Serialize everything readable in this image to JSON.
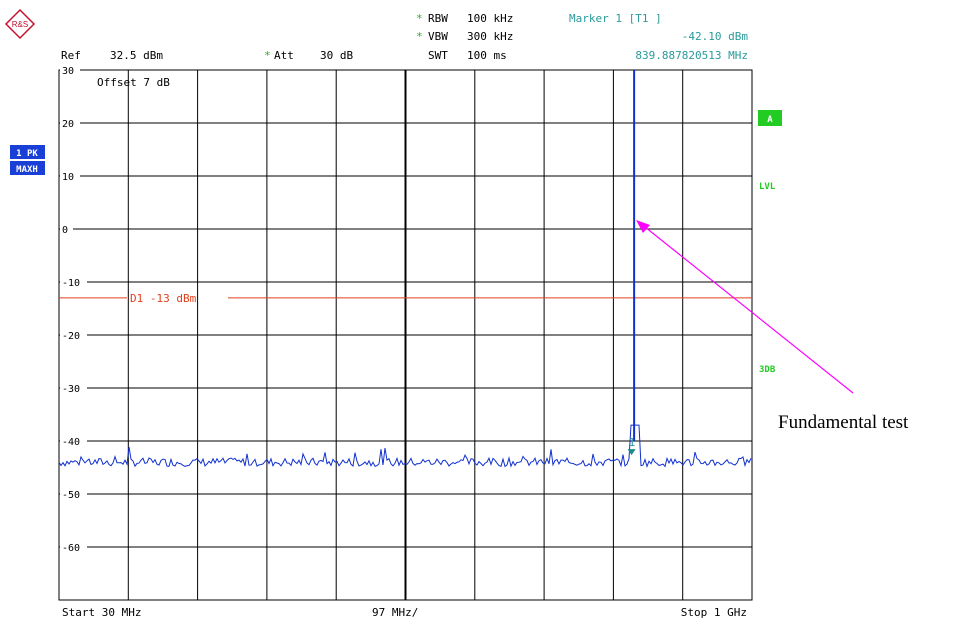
{
  "logo": {
    "text": "R&S",
    "color": "#c8102e"
  },
  "header": {
    "rbw": {
      "mark": "*",
      "label": "RBW",
      "value": "100 kHz"
    },
    "vbw": {
      "mark": "*",
      "label": "VBW",
      "value": "300 kHz"
    },
    "swt": {
      "label": "SWT",
      "value": "100 ms"
    },
    "ref": {
      "label": "Ref",
      "value": "32.5 dBm"
    },
    "att": {
      "mark": "*",
      "label": "Att",
      "value": "30 dB"
    },
    "marker": {
      "title": "Marker 1 [T1 ]",
      "level": "-42.10 dBm",
      "freq": "839.887820513 MHz"
    }
  },
  "side_labels": {
    "trace": [
      "1 PK",
      "MAXH"
    ],
    "right": {
      "a": "A",
      "lvl": "LVL",
      "db3": "3DB"
    }
  },
  "offset_text": "Offset   7 dB",
  "display_line": {
    "label": "D1  -13 dBm",
    "value": -13,
    "color": "#e0401c"
  },
  "footer": {
    "start": "Start  30 MHz",
    "span": "97 MHz/",
    "stop": "Stop  1 GHz"
  },
  "annotation": {
    "text": "Fundamental test",
    "color": "#ff00ff"
  },
  "colors": {
    "grid": "#000000",
    "trace": "#1030d0",
    "marker": "#30a0a0",
    "badge": "#1a3fd6",
    "green": "#22cc22"
  },
  "chart_data": {
    "type": "line",
    "xlim": [
      30,
      1000
    ],
    "ylim": [
      -70,
      30
    ],
    "x_unit": "MHz",
    "y_unit": "dBm",
    "yticks": [
      30,
      20,
      10,
      0,
      -10,
      -20,
      -30,
      -40,
      -50,
      -60
    ],
    "noise_floor": -44,
    "series": [
      {
        "values": [
          {
            "x": 30,
            "y": -44
          },
          {
            "x": 100,
            "y": -44
          },
          {
            "x": 200,
            "y": -44
          },
          {
            "x": 300,
            "y": -44
          },
          {
            "x": 400,
            "y": -44
          },
          {
            "x": 500,
            "y": -44
          },
          {
            "x": 600,
            "y": -44
          },
          {
            "x": 700,
            "y": -44
          },
          {
            "x": 800,
            "y": -44
          },
          {
            "x": 833,
            "y": -44
          },
          {
            "x": 835,
            "y": 30
          },
          {
            "x": 837,
            "y": -40
          },
          {
            "x": 840,
            "y": -44
          },
          {
            "x": 900,
            "y": -44
          },
          {
            "x": 1000,
            "y": -44
          }
        ]
      }
    ],
    "marker": {
      "x": 839.887820513,
      "y": -42.1,
      "label": "1"
    }
  }
}
